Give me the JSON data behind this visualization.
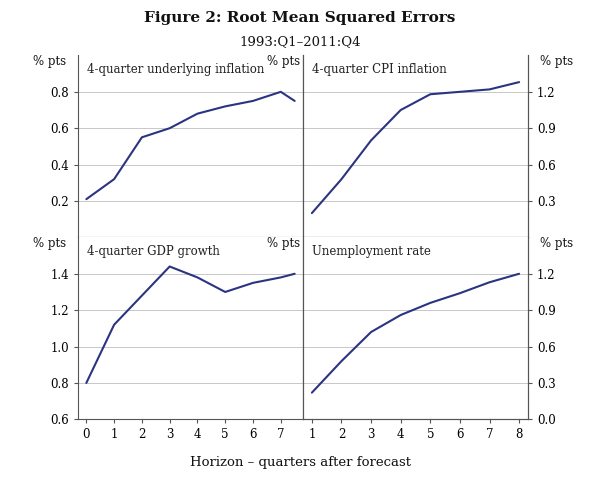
{
  "title": "Figure 2: Root Mean Squared Errors",
  "subtitle": "1993:Q1–2011:Q4",
  "xlabel": "Horizon – quarters after forecast",
  "line_color": "#2b3480",
  "bg_color": "#ffffff",
  "grid_color": "#c8c8c8",
  "spine_color": "#555555",
  "panels": [
    {
      "label": "4-quarter underlying inflation",
      "row": 0,
      "col": 0,
      "x": [
        0,
        1,
        2,
        3,
        4,
        5,
        6,
        7,
        7.5
      ],
      "y": [
        0.21,
        0.32,
        0.55,
        0.6,
        0.68,
        0.72,
        0.75,
        0.8,
        0.75
      ],
      "xlim": [
        -0.3,
        7.8
      ],
      "xticks": [
        0,
        1,
        2,
        3,
        4,
        5,
        6,
        7
      ],
      "ylim": [
        0.0,
        1.0
      ],
      "yticks_left": [
        0.2,
        0.4,
        0.6,
        0.8
      ],
      "yticks_right": null,
      "show_xlabels": false,
      "left_label": "% pts",
      "right_label": null
    },
    {
      "label": "4-quarter CPI inflation",
      "row": 0,
      "col": 1,
      "x": [
        1,
        2,
        3,
        4,
        5,
        6,
        7,
        8
      ],
      "y": [
        0.2,
        0.48,
        0.8,
        1.05,
        1.18,
        1.2,
        1.22,
        1.28
      ],
      "xlim": [
        0.7,
        8.3
      ],
      "xticks": [
        1,
        2,
        3,
        4,
        5,
        6,
        7,
        8
      ],
      "ylim": [
        0.0,
        1.5
      ],
      "yticks_left": null,
      "yticks_right": [
        0.3,
        0.6,
        0.9,
        1.2
      ],
      "show_xlabels": false,
      "left_label": "% pts",
      "right_label": "% pts"
    },
    {
      "label": "4-quarter GDP growth",
      "row": 1,
      "col": 0,
      "x": [
        0,
        1,
        2,
        3,
        4,
        5,
        6,
        7,
        7.5
      ],
      "y": [
        0.8,
        1.12,
        1.28,
        1.44,
        1.38,
        1.3,
        1.35,
        1.38,
        1.4
      ],
      "xlim": [
        -0.3,
        7.8
      ],
      "xticks": [
        0,
        1,
        2,
        3,
        4,
        5,
        6,
        7
      ],
      "ylim": [
        0.6,
        1.6
      ],
      "yticks_left": [
        0.6,
        0.8,
        1.0,
        1.2,
        1.4
      ],
      "yticks_right": null,
      "show_xlabels": true,
      "left_label": "% pts",
      "right_label": null
    },
    {
      "label": "Unemployment rate",
      "row": 1,
      "col": 1,
      "x": [
        1,
        2,
        3,
        4,
        5,
        6,
        7,
        8
      ],
      "y": [
        0.22,
        0.48,
        0.72,
        0.86,
        0.96,
        1.04,
        1.13,
        1.2
      ],
      "xlim": [
        0.7,
        8.3
      ],
      "xticks": [
        1,
        2,
        3,
        4,
        5,
        6,
        7,
        8
      ],
      "ylim": [
        0.0,
        1.5
      ],
      "yticks_left": null,
      "yticks_right": [
        0.0,
        0.3,
        0.6,
        0.9,
        1.2
      ],
      "show_xlabels": true,
      "left_label": "% pts",
      "right_label": "% pts"
    }
  ]
}
